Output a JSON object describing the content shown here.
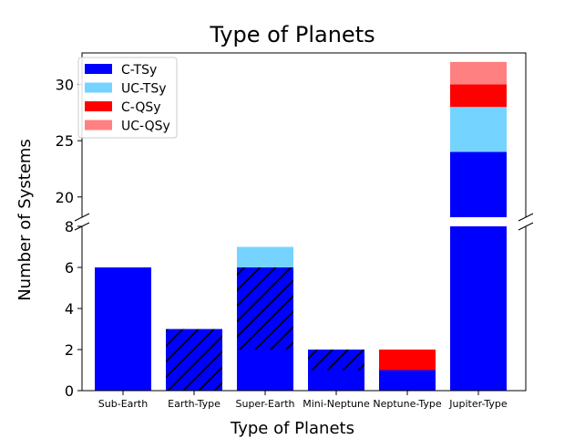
{
  "chart_data": {
    "type": "bar",
    "stacked": true,
    "broken_y_axis": true,
    "title": "Type of Planets",
    "xlabel": "Type of Planets",
    "ylabel": "Number of Systems",
    "categories": [
      "Sub-Earth",
      "Earth-Type",
      "Super-Earth",
      "Mini-Neptune",
      "Neptune-Type",
      "Jupiter-Type"
    ],
    "series": [
      {
        "name": "C-TSy",
        "color": "#0000ff",
        "values": [
          6,
          3,
          6,
          2,
          1,
          24
        ]
      },
      {
        "name": "UC-TSy",
        "color": "#75d3ff",
        "values": [
          0,
          0,
          1,
          0,
          0,
          4
        ]
      },
      {
        "name": "C-QSy",
        "color": "#ff0000",
        "values": [
          0,
          0,
          0,
          0,
          1,
          2
        ]
      },
      {
        "name": "UC-QSy",
        "color": "#ff8080",
        "values": [
          0,
          0,
          0,
          0,
          0,
          2
        ]
      }
    ],
    "hatched_segments": [
      {
        "category": "Earth-Type",
        "from": 0,
        "to": 3
      },
      {
        "category": "Super-Earth",
        "from": 2,
        "to": 6
      },
      {
        "category": "Mini-Neptune",
        "from": 1,
        "to": 2
      }
    ],
    "lower_panel": {
      "ylim": [
        0,
        8
      ],
      "yticks": [
        0,
        2,
        4,
        6,
        8
      ]
    },
    "upper_panel": {
      "ylim": [
        18.2,
        32.8
      ],
      "yticks": [
        20,
        25,
        30
      ]
    },
    "legend_position": "upper left of upper panel",
    "grid": false
  }
}
